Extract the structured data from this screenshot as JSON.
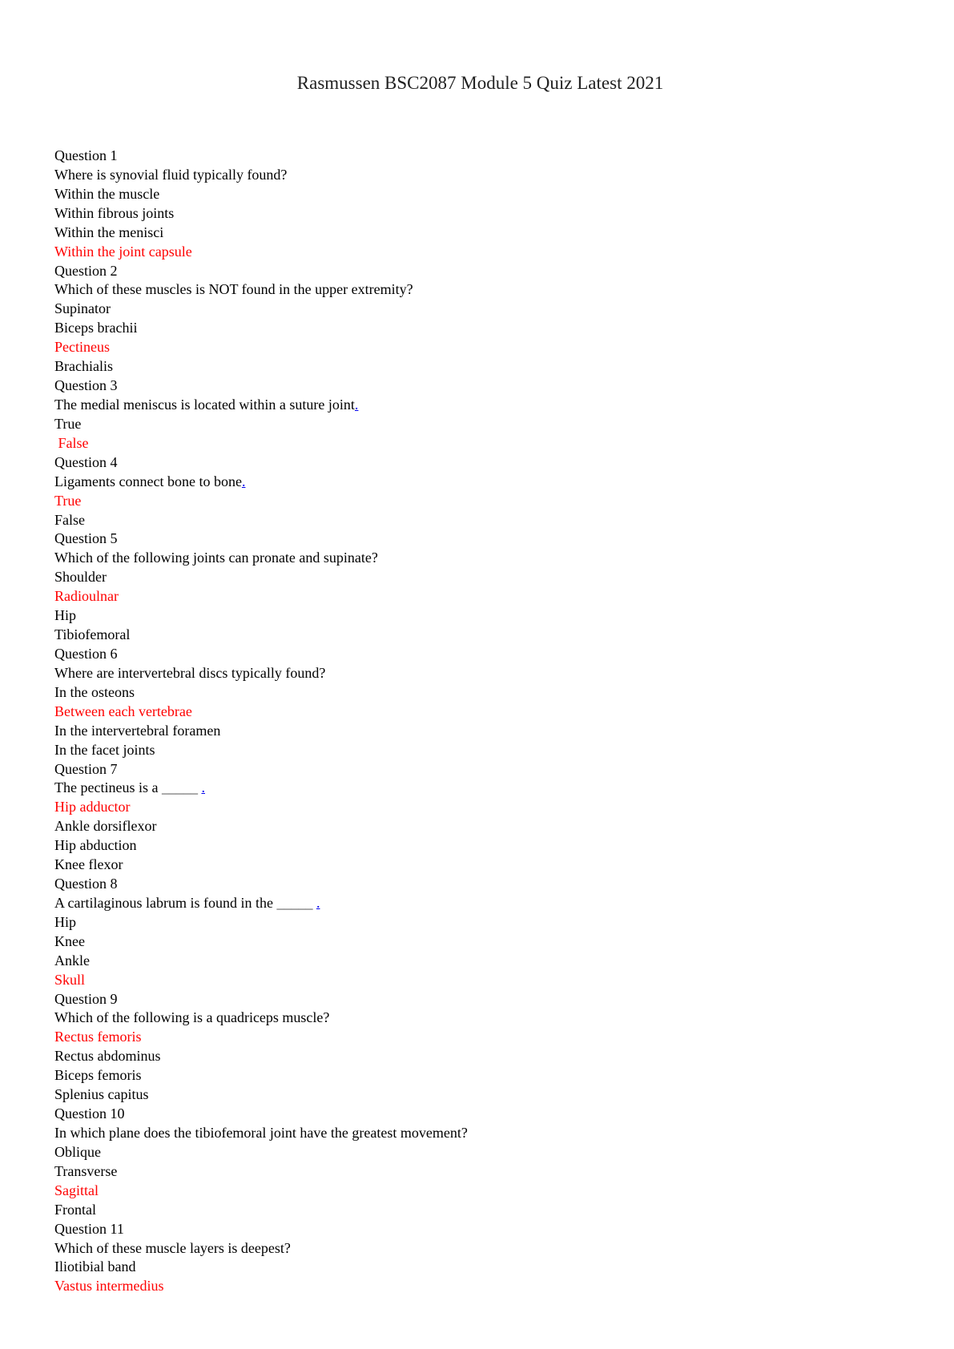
{
  "title": "Rasmussen BSC2087 Module 5 Quiz Latest 2021",
  "colors": {
    "correct": "#ff0000",
    "link": "#0000ee",
    "text": "#000000"
  },
  "questions": [
    {
      "label": "Question 1",
      "text": "Where is synovial fluid typically found?",
      "blank": "",
      "mark": "",
      "options": [
        {
          "text": "Within the muscle",
          "correct": false
        },
        {
          "text": "Within fibrous joints",
          "correct": false
        },
        {
          "text": "Within the menisci",
          "correct": false
        },
        {
          "text": "Within the joint capsule",
          "correct": true
        }
      ]
    },
    {
      "label": "Question 2",
      "text": "Which of these muscles is NOT found in the upper extremity?",
      "blank": "",
      "mark": "",
      "options": [
        {
          "text": "Supinator",
          "correct": false
        },
        {
          "text": "Biceps brachii",
          "correct": false
        },
        {
          "text": "Pectineus",
          "correct": true
        },
        {
          "text": "Brachialis",
          "correct": false
        }
      ]
    },
    {
      "label": "Question 3",
      "text": "The medial meniscus is located within a suture joint",
      "blank": "",
      "mark": ".",
      "options": [
        {
          "text": "True",
          "correct": false
        },
        {
          "text": " False",
          "correct": true
        }
      ]
    },
    {
      "label": "Question 4",
      "text": "Ligaments connect bone to bone",
      "blank": "",
      "mark": ".",
      "options": [
        {
          "text": "True",
          "correct": true
        },
        {
          "text": "False",
          "correct": false
        }
      ]
    },
    {
      "label": "Question 5",
      "text": "Which of the following joints can pronate and supinate?",
      "blank": "",
      "mark": "",
      "options": [
        {
          "text": "Shoulder",
          "correct": false
        },
        {
          "text": "Radioulnar",
          "correct": true
        },
        {
          "text": "Hip",
          "correct": false
        },
        {
          "text": "Tibiofemoral",
          "correct": false
        }
      ]
    },
    {
      "label": "Question 6",
      "text": "Where are intervertebral discs typically found?",
      "blank": "",
      "mark": "",
      "options": [
        {
          "text": "In the osteons",
          "correct": false
        },
        {
          "text": "Between each vertebrae",
          "correct": true
        },
        {
          "text": "In the intervertebral foramen",
          "correct": false
        },
        {
          "text": "In the facet joints",
          "correct": false
        }
      ]
    },
    {
      "label": "Question 7",
      "text": "The pectineus is a ",
      "blank": "_____ ",
      "mark": ".",
      "options": [
        {
          "text": "Hip adductor",
          "correct": true
        },
        {
          "text": "Ankle dorsiflexor",
          "correct": false
        },
        {
          "text": "Hip abduction",
          "correct": false
        },
        {
          "text": "Knee flexor",
          "correct": false
        }
      ]
    },
    {
      "label": "Question 8",
      "text": "A cartilaginous labrum is found in the ",
      "blank": "_____ ",
      "mark": ".",
      "options": [
        {
          "text": "Hip",
          "correct": false
        },
        {
          "text": "Knee",
          "correct": false
        },
        {
          "text": "Ankle",
          "correct": false
        },
        {
          "text": "Skull",
          "correct": true
        }
      ]
    },
    {
      "label": "Question 9",
      "text": "Which of the following is a quadriceps muscle?",
      "blank": "",
      "mark": "",
      "options": [
        {
          "text": "Rectus femoris",
          "correct": true
        },
        {
          "text": "Rectus abdominus",
          "correct": false
        },
        {
          "text": "Biceps femoris",
          "correct": false
        },
        {
          "text": "Splenius capitus",
          "correct": false
        }
      ]
    },
    {
      "label": "Question 10",
      "text": "In which plane does the tibiofemoral joint have the greatest movement?",
      "blank": "",
      "mark": "",
      "options": [
        {
          "text": "Oblique",
          "correct": false
        },
        {
          "text": "Transverse",
          "correct": false
        },
        {
          "text": "Sagittal",
          "correct": true
        },
        {
          "text": "Frontal",
          "correct": false
        }
      ]
    },
    {
      "label": "Question 11",
      "text": "Which of these muscle layers is deepest?",
      "blank": "",
      "mark": "",
      "options": [
        {
          "text": "Iliotibial band",
          "correct": false
        },
        {
          "text": "Vastus intermedius",
          "correct": true
        }
      ]
    }
  ]
}
